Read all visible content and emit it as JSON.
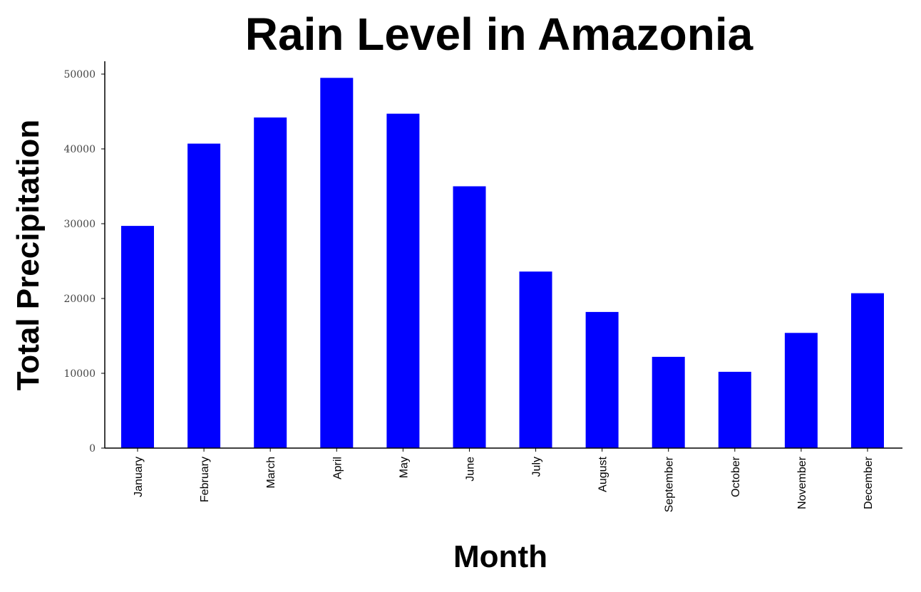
{
  "chart_data": {
    "type": "bar",
    "title": "Rain Level in Amazonia",
    "xlabel": "Month",
    "ylabel": "Total Precipitation",
    "categories": [
      "January",
      "February",
      "March",
      "April",
      "May",
      "June",
      "July",
      "August",
      "September",
      "October",
      "November",
      "December"
    ],
    "values": [
      29700,
      40700,
      44200,
      49500,
      44700,
      35000,
      23600,
      18200,
      12200,
      10200,
      15400,
      20700
    ],
    "ylim": [
      0,
      52000
    ],
    "yticks": [
      0,
      10000,
      20000,
      30000,
      40000,
      50000
    ],
    "grid": false,
    "legend": "none",
    "bar_color": "#0000ff",
    "spines": [
      "left",
      "bottom"
    ]
  }
}
